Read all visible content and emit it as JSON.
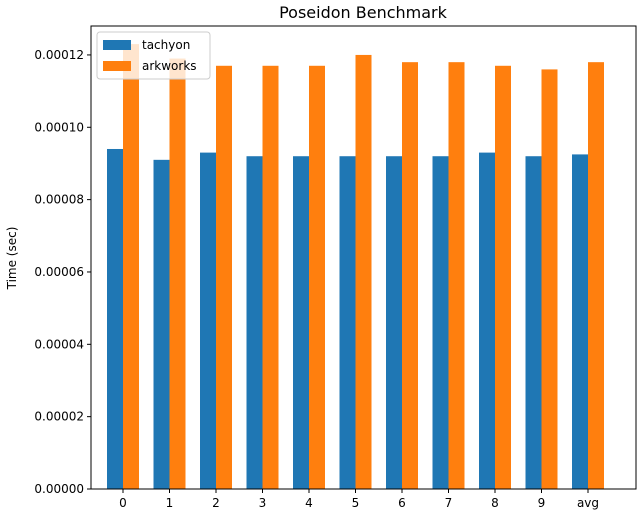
{
  "chart_data": {
    "type": "bar",
    "title": "Poseidon Benchmark",
    "xlabel": "",
    "ylabel": "Time (sec)",
    "categories": [
      "0",
      "1",
      "2",
      "3",
      "4",
      "5",
      "6",
      "7",
      "8",
      "9",
      "avg"
    ],
    "series": [
      {
        "name": "tachyon",
        "color": "#1f77b4",
        "values": [
          9.4e-05,
          9.1e-05,
          9.3e-05,
          9.2e-05,
          9.2e-05,
          9.2e-05,
          9.2e-05,
          9.2e-05,
          9.3e-05,
          9.2e-05,
          9.25e-05
        ]
      },
      {
        "name": "arkworks",
        "color": "#ff7f0e",
        "values": [
          0.000123,
          0.000119,
          0.000117,
          0.000117,
          0.000117,
          0.00012,
          0.000118,
          0.000118,
          0.000117,
          0.000116,
          0.000118
        ]
      }
    ],
    "ylim": [
      0,
      0.000128
    ],
    "yticks": [
      "0.00000",
      "0.00002",
      "0.00004",
      "0.00006",
      "0.00008",
      "0.00010",
      "0.00012"
    ],
    "ytick_values": [
      0,
      2e-05,
      4e-05,
      6e-05,
      8e-05,
      0.0001,
      0.00012
    ],
    "grid": false,
    "legend_position": "top-left"
  }
}
